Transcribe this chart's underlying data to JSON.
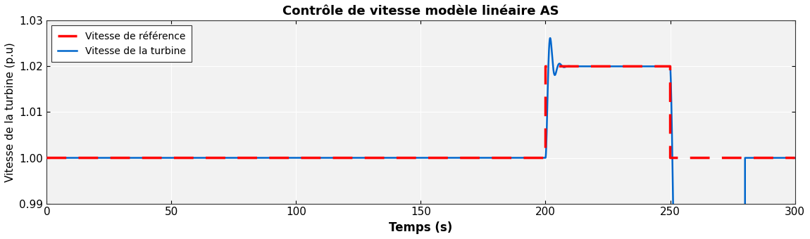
{
  "title": "Contrôle de vitesse modèle linéaire AS",
  "xlabel": "Temps (s)",
  "ylabel": "Vitesse de la turbine (p.u)",
  "xlim": [
    0,
    300
  ],
  "ylim": [
    0.99,
    1.03
  ],
  "yticks": [
    0.99,
    1.0,
    1.01,
    1.02,
    1.03
  ],
  "xticks": [
    0,
    50,
    100,
    150,
    200,
    250,
    300
  ],
  "legend_ref": "Vitesse de référence",
  "legend_turb": "Vitesse de la turbine",
  "ref_color": "#FF0000",
  "turb_color": "#0066CC",
  "axes_bg_color": "#F2F2F2",
  "fig_bg_color": "#FFFFFF",
  "grid_color": "#FFFFFF"
}
